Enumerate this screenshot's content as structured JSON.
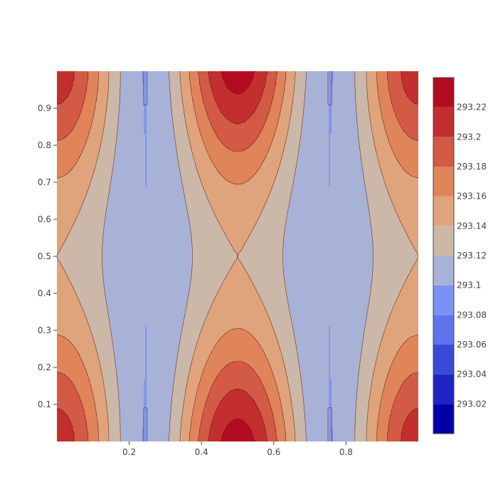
{
  "chart_data": {
    "type": "contour",
    "title": "",
    "xlabel": "",
    "ylabel": "",
    "xlim": [
      0,
      1
    ],
    "ylim": [
      0,
      1
    ],
    "x_ticks": [
      0.2,
      0.4,
      0.6,
      0.8
    ],
    "y_ticks": [
      0.1,
      0.2,
      0.3,
      0.4,
      0.5,
      0.6,
      0.7,
      0.8,
      0.9
    ],
    "z_formula": "293.16 + 0.06*cos(4*pi*(x-0.5)) - 0.08*(1-(2y-1)^2)^1.6*cos(2*pi*(x-0.5))^2 + 0.01*(2y-1)^2*cos(2*pi*(x-0.5))",
    "levels": [
      293.02,
      293.04,
      293.06,
      293.08,
      293.1,
      293.12,
      293.14,
      293.16,
      293.18,
      293.2,
      293.22
    ],
    "zrange": [
      293.0,
      293.24
    ],
    "colorbar": {
      "ticks": [
        "293.02",
        "293.04",
        "293.06",
        "293.08",
        "293.1",
        "293.12",
        "293.14",
        "293.16",
        "293.18",
        "293.2",
        "293.22"
      ]
    },
    "bands": [
      "#0000a8",
      "#1e24c6",
      "#3a4ad8",
      "#5e74ec",
      "#7a93f2",
      "#a8b1d6",
      "#cbb8a8",
      "#e0a47c",
      "#e0845a",
      "#d35a44",
      "#c22f2e",
      "#b30c21"
    ],
    "line_color": "#5a1a1a",
    "grid": false,
    "legend": "colorbar-right"
  }
}
